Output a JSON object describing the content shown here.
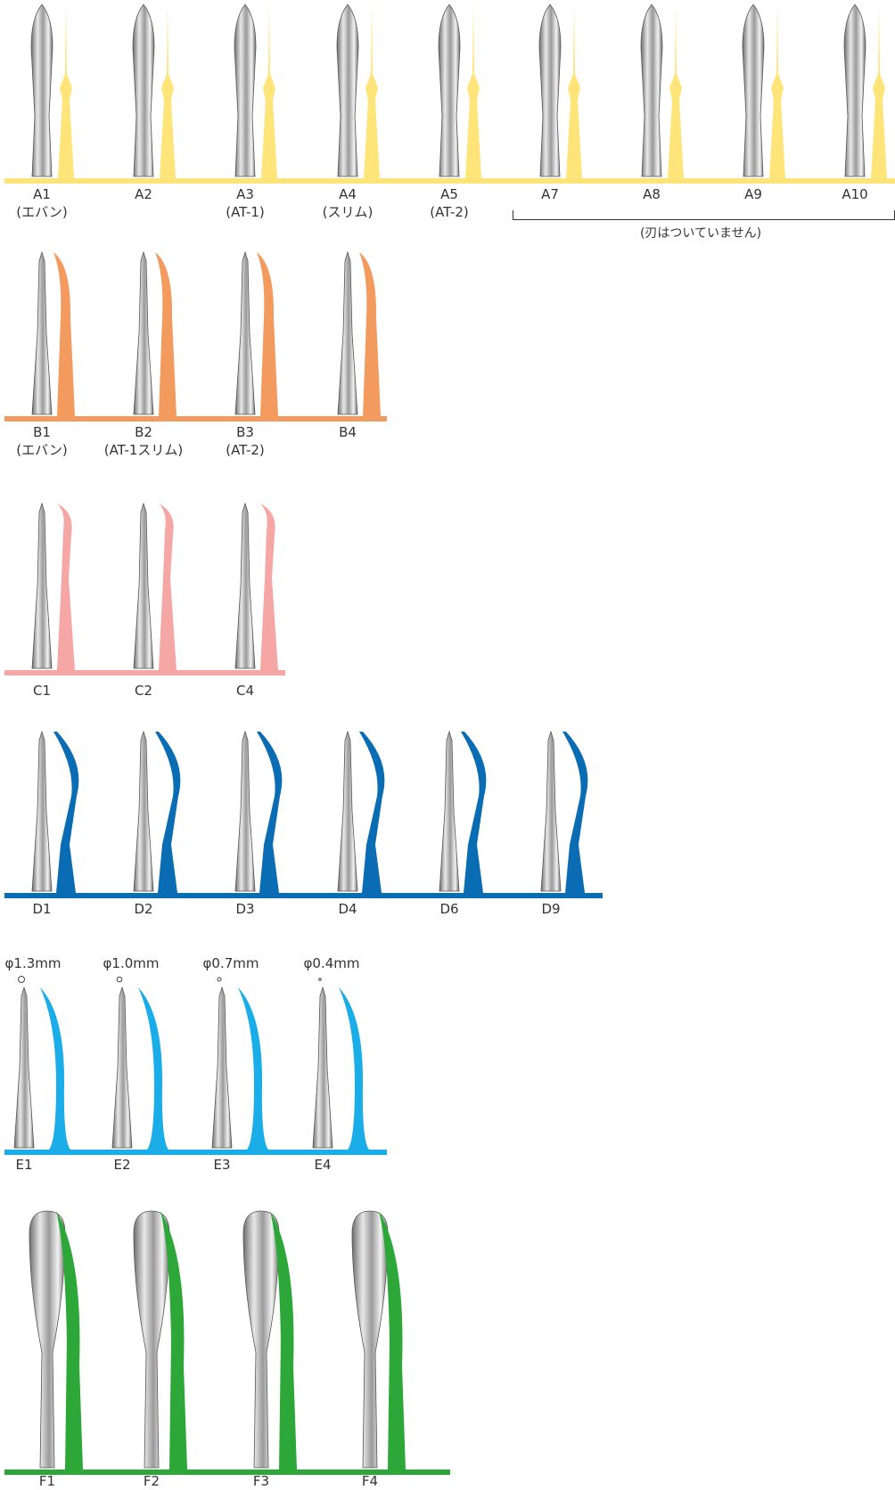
{
  "rows": [
    {
      "id": "A",
      "color": "#FFE47A",
      "items": [
        {
          "label": "A1",
          "sub": "(エバン)"
        },
        {
          "label": "A2",
          "sub": ""
        },
        {
          "label": "A3",
          "sub": "(AT-1)"
        },
        {
          "label": "A4",
          "sub": "(スリム)"
        },
        {
          "label": "A5",
          "sub": "(AT-2)"
        },
        {
          "label": "A7",
          "sub": ""
        },
        {
          "label": "A8",
          "sub": ""
        },
        {
          "label": "A9",
          "sub": ""
        },
        {
          "label": "A10",
          "sub": ""
        }
      ],
      "bracket_note": "(刃はついていません)"
    },
    {
      "id": "B",
      "color": "#F39A5E",
      "items": [
        {
          "label": "B1",
          "sub": "(エバン)"
        },
        {
          "label": "B2",
          "sub": "(AT-1スリム)"
        },
        {
          "label": "B3",
          "sub": "(AT-2)"
        },
        {
          "label": "B4",
          "sub": ""
        }
      ]
    },
    {
      "id": "C",
      "color": "#F4A7A5",
      "items": [
        {
          "label": "C1",
          "sub": ""
        },
        {
          "label": "C2",
          "sub": ""
        },
        {
          "label": "C4",
          "sub": ""
        }
      ]
    },
    {
      "id": "D",
      "color": "#0A6DB3",
      "items": [
        {
          "label": "D1",
          "sub": ""
        },
        {
          "label": "D2",
          "sub": ""
        },
        {
          "label": "D3",
          "sub": ""
        },
        {
          "label": "D4",
          "sub": ""
        },
        {
          "label": "D6",
          "sub": ""
        },
        {
          "label": "D9",
          "sub": ""
        }
      ]
    },
    {
      "id": "E",
      "color": "#1AADE8",
      "items": [
        {
          "label": "E1",
          "sub": "",
          "diameter": "φ1.3mm"
        },
        {
          "label": "E2",
          "sub": "",
          "diameter": "φ1.0mm"
        },
        {
          "label": "E3",
          "sub": "",
          "diameter": "φ0.7mm"
        },
        {
          "label": "E4",
          "sub": "",
          "diameter": "φ0.4mm"
        }
      ]
    },
    {
      "id": "F",
      "color": "#2DA838",
      "items": [
        {
          "label": "F1",
          "sub": ""
        },
        {
          "label": "F2",
          "sub": ""
        },
        {
          "label": "F3",
          "sub": ""
        },
        {
          "label": "F4",
          "sub": ""
        }
      ]
    }
  ]
}
